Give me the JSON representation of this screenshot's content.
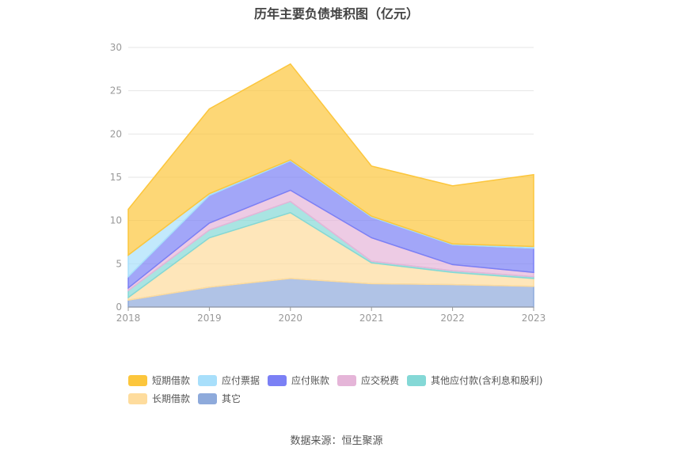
{
  "chart_data": {
    "type": "area",
    "stacked": true,
    "title": "历年主要负债堆积图（亿元）",
    "x": [
      "2018",
      "2019",
      "2020",
      "2021",
      "2022",
      "2023"
    ],
    "ylim": [
      0,
      30
    ],
    "yticks": [
      0,
      5,
      10,
      15,
      20,
      25,
      30
    ],
    "grid": true,
    "legend_position": "bottom",
    "series": [
      {
        "name": "其它",
        "color": "#8eaadb",
        "values": [
          0.8,
          2.3,
          3.3,
          2.7,
          2.6,
          2.4
        ]
      },
      {
        "name": "长期借款",
        "color": "#fedc9d",
        "values": [
          0.3,
          5.7,
          7.6,
          2.4,
          1.4,
          0.9
        ]
      },
      {
        "name": "其他应付款(含利息和股利)",
        "color": "#84d8d6",
        "values": [
          0.8,
          0.9,
          1.3,
          0.2,
          0.2,
          0.2
        ]
      },
      {
        "name": "应交税费",
        "color": "#e5b5d8",
        "values": [
          0.3,
          0.8,
          1.3,
          2.7,
          0.7,
          0.5
        ]
      },
      {
        "name": "应付账款",
        "color": "#7b80f5",
        "values": [
          1.3,
          3.2,
          3.4,
          2.4,
          2.3,
          2.8
        ]
      },
      {
        "name": "应付票据",
        "color": "#a8dffb",
        "values": [
          2.5,
          0.2,
          0.1,
          0.1,
          0.1,
          0.2
        ]
      },
      {
        "name": "短期借款",
        "color": "#fcc63c",
        "values": [
          5.3,
          9.8,
          11.1,
          5.8,
          6.7,
          8.3
        ]
      }
    ]
  },
  "legend": [
    [
      {
        "label": "短期借款",
        "color": "#fcc63c"
      },
      {
        "label": "应付票据",
        "color": "#a8dffb"
      },
      {
        "label": "应付账款",
        "color": "#7b80f5"
      },
      {
        "label": "应交税费",
        "color": "#e5b5d8"
      },
      {
        "label": "其他应付款(含利息和股利)",
        "color": "#84d8d6"
      }
    ],
    [
      {
        "label": "长期借款",
        "color": "#fedc9d"
      },
      {
        "label": "其它",
        "color": "#8eaadb"
      }
    ]
  ],
  "source": "数据来源：恒生聚源"
}
